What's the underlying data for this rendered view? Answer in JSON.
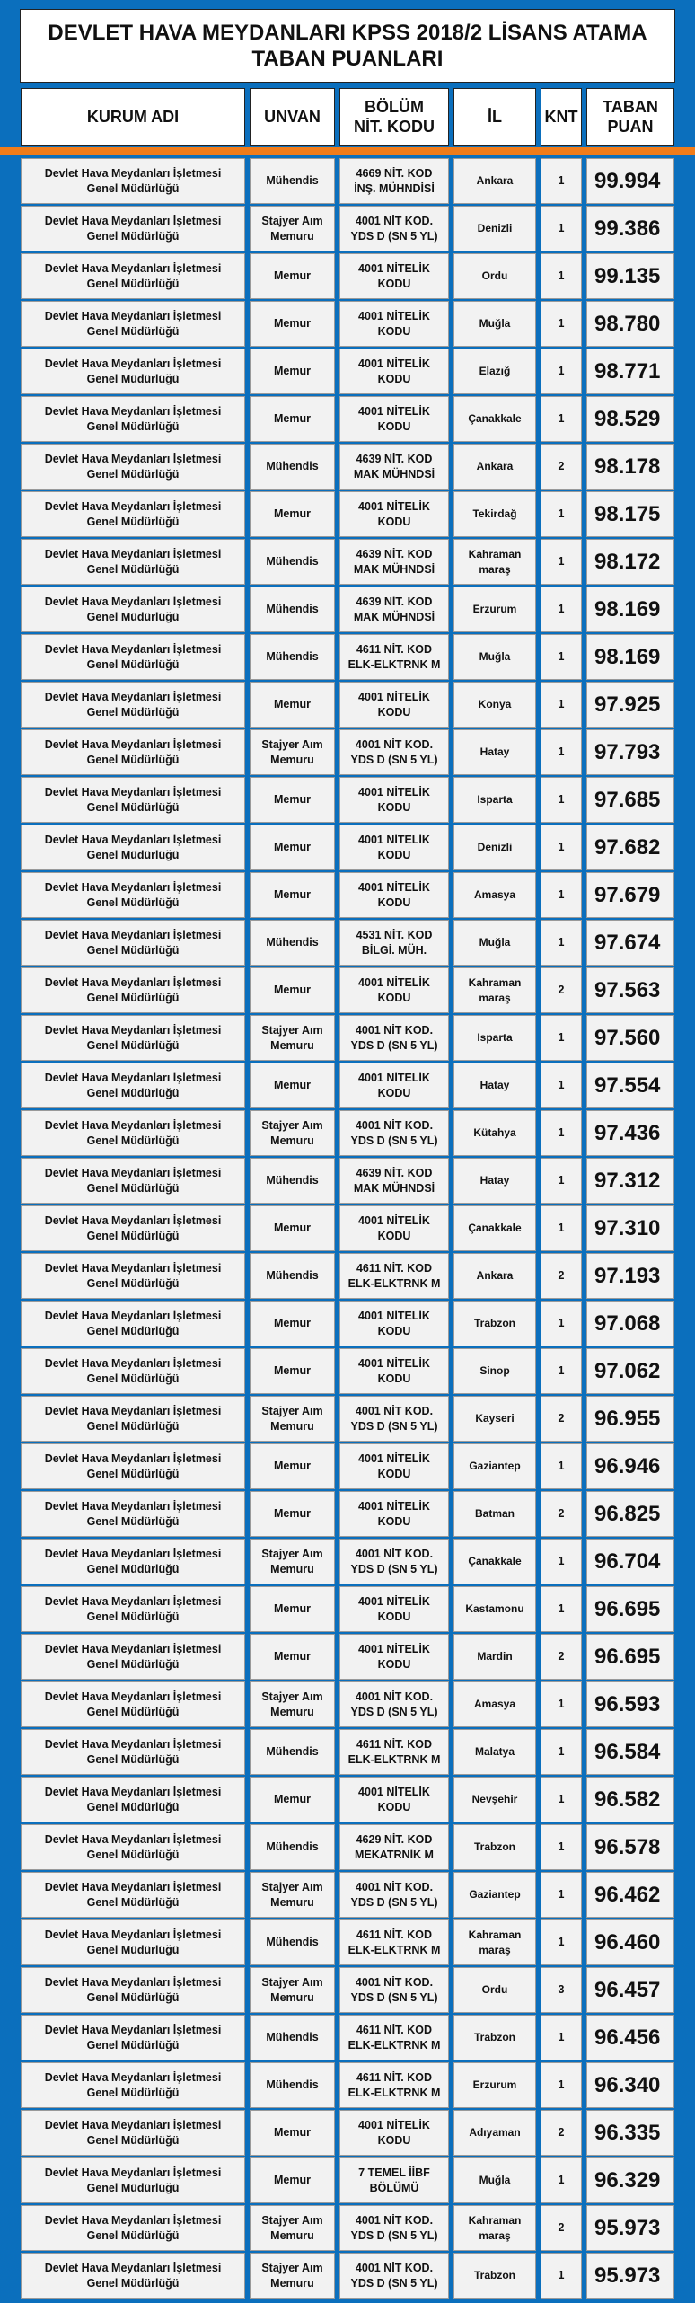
{
  "title": "DEVLET HAVA MEYDANLARI KPSS 2018/2 LİSANS ATAMA\nTABAN PUANLARI",
  "table": {
    "header": [
      "KURUM ADI",
      "UNVAN",
      "BÖLÜM\nNİT. KODU",
      "İL",
      "KNT",
      "TABAN\nPUAN"
    ],
    "rows": [
      [
        "Devlet Hava Meydanları İşletmesi\nGenel Müdürlüğü",
        "Mühendis",
        "4669 NİT. KOD\nİNŞ. MÜHNDİSİ",
        "Ankara",
        "1",
        "99.994"
      ],
      [
        "Devlet Hava Meydanları İşletmesi\nGenel Müdürlüğü",
        "Stajyer Aım\nMemuru",
        "4001 NİT KOD.\nYDS D (SN 5 YL)",
        "Denizli",
        "1",
        "99.386"
      ],
      [
        "Devlet Hava Meydanları İşletmesi\nGenel Müdürlüğü",
        "Memur",
        "4001 NİTELİK\nKODU",
        "Ordu",
        "1",
        "99.135"
      ],
      [
        "Devlet Hava Meydanları İşletmesi\nGenel Müdürlüğü",
        "Memur",
        "4001 NİTELİK\nKODU",
        "Muğla",
        "1",
        "98.780"
      ],
      [
        "Devlet Hava Meydanları İşletmesi\nGenel Müdürlüğü",
        "Memur",
        "4001 NİTELİK\nKODU",
        "Elazığ",
        "1",
        "98.771"
      ],
      [
        "Devlet Hava Meydanları İşletmesi\nGenel Müdürlüğü",
        "Memur",
        "4001 NİTELİK\nKODU",
        "Çanakkale",
        "1",
        "98.529"
      ],
      [
        "Devlet Hava Meydanları İşletmesi\nGenel Müdürlüğü",
        "Mühendis",
        "4639 NİT. KOD\nMAK MÜHNDSİ",
        "Ankara",
        "2",
        "98.178"
      ],
      [
        "Devlet Hava Meydanları İşletmesi\nGenel Müdürlüğü",
        "Memur",
        "4001 NİTELİK\nKODU",
        "Tekirdağ",
        "1",
        "98.175"
      ],
      [
        "Devlet Hava Meydanları İşletmesi\nGenel Müdürlüğü",
        "Mühendis",
        "4639 NİT. KOD\nMAK MÜHNDSİ",
        "Kahraman\nmaraş",
        "1",
        "98.172"
      ],
      [
        "Devlet Hava Meydanları İşletmesi\nGenel Müdürlüğü",
        "Mühendis",
        "4639 NİT. KOD\nMAK MÜHNDSİ",
        "Erzurum",
        "1",
        "98.169"
      ],
      [
        "Devlet Hava Meydanları İşletmesi\nGenel Müdürlüğü",
        "Mühendis",
        "4611 NİT. KOD\nELK-ELKTRNK M",
        "Muğla",
        "1",
        "98.169"
      ],
      [
        "Devlet Hava Meydanları İşletmesi\nGenel Müdürlüğü",
        "Memur",
        "4001 NİTELİK\nKODU",
        "Konya",
        "1",
        "97.925"
      ],
      [
        "Devlet Hava Meydanları İşletmesi\nGenel Müdürlüğü",
        "Stajyer Aım\nMemuru",
        "4001 NİT KOD.\nYDS D (SN 5 YL)",
        "Hatay",
        "1",
        "97.793"
      ],
      [
        "Devlet Hava Meydanları İşletmesi\nGenel Müdürlüğü",
        "Memur",
        "4001 NİTELİK\nKODU",
        "Isparta",
        "1",
        "97.685"
      ],
      [
        "Devlet Hava Meydanları İşletmesi\nGenel Müdürlüğü",
        "Memur",
        "4001 NİTELİK\nKODU",
        "Denizli",
        "1",
        "97.682"
      ],
      [
        "Devlet Hava Meydanları İşletmesi\nGenel Müdürlüğü",
        "Memur",
        "4001 NİTELİK\nKODU",
        "Amasya",
        "1",
        "97.679"
      ],
      [
        "Devlet Hava Meydanları İşletmesi\nGenel Müdürlüğü",
        "Mühendis",
        "4531 NİT. KOD\nBİLGİ. MÜH.",
        "Muğla",
        "1",
        "97.674"
      ],
      [
        "Devlet Hava Meydanları İşletmesi\nGenel Müdürlüğü",
        "Memur",
        "4001 NİTELİK\nKODU",
        "Kahraman\nmaraş",
        "2",
        "97.563"
      ],
      [
        "Devlet Hava Meydanları İşletmesi\nGenel Müdürlüğü",
        "Stajyer Aım\nMemuru",
        "4001 NİT KOD.\nYDS D (SN 5 YL)",
        "Isparta",
        "1",
        "97.560"
      ],
      [
        "Devlet Hava Meydanları İşletmesi\nGenel Müdürlüğü",
        "Memur",
        "4001 NİTELİK\nKODU",
        "Hatay",
        "1",
        "97.554"
      ],
      [
        "Devlet Hava Meydanları İşletmesi\nGenel Müdürlüğü",
        "Stajyer Aım\nMemuru",
        "4001 NİT KOD.\nYDS D (SN 5 YL)",
        "Kütahya",
        "1",
        "97.436"
      ],
      [
        "Devlet Hava Meydanları İşletmesi\nGenel Müdürlüğü",
        "Mühendis",
        "4639 NİT. KOD\nMAK MÜHNDSİ",
        "Hatay",
        "1",
        "97.312"
      ],
      [
        "Devlet Hava Meydanları İşletmesi\nGenel Müdürlüğü",
        "Memur",
        "4001 NİTELİK\nKODU",
        "Çanakkale",
        "1",
        "97.310"
      ],
      [
        "Devlet Hava Meydanları İşletmesi\nGenel Müdürlüğü",
        "Mühendis",
        "4611 NİT. KOD\nELK-ELKTRNK M",
        "Ankara",
        "2",
        "97.193"
      ],
      [
        "Devlet Hava Meydanları İşletmesi\nGenel Müdürlüğü",
        "Memur",
        "4001 NİTELİK\nKODU",
        "Trabzon",
        "1",
        "97.068"
      ],
      [
        "Devlet Hava Meydanları İşletmesi\nGenel Müdürlüğü",
        "Memur",
        "4001 NİTELİK\nKODU",
        "Sinop",
        "1",
        "97.062"
      ],
      [
        "Devlet Hava Meydanları İşletmesi\nGenel Müdürlüğü",
        "Stajyer Aım\nMemuru",
        "4001 NİT KOD.\nYDS D (SN 5 YL)",
        "Kayseri",
        "2",
        "96.955"
      ],
      [
        "Devlet Hava Meydanları İşletmesi\nGenel Müdürlüğü",
        "Memur",
        "4001 NİTELİK\nKODU",
        "Gaziantep",
        "1",
        "96.946"
      ],
      [
        "Devlet Hava Meydanları İşletmesi\nGenel Müdürlüğü",
        "Memur",
        "4001 NİTELİK\nKODU",
        "Batman",
        "2",
        "96.825"
      ],
      [
        "Devlet Hava Meydanları İşletmesi\nGenel Müdürlüğü",
        "Stajyer Aım\nMemuru",
        "4001 NİT KOD.\nYDS D (SN 5 YL)",
        "Çanakkale",
        "1",
        "96.704"
      ],
      [
        "Devlet Hava Meydanları İşletmesi\nGenel Müdürlüğü",
        "Memur",
        "4001 NİTELİK\nKODU",
        "Kastamonu",
        "1",
        "96.695"
      ],
      [
        "Devlet Hava Meydanları İşletmesi\nGenel Müdürlüğü",
        "Memur",
        "4001 NİTELİK\nKODU",
        "Mardin",
        "2",
        "96.695"
      ],
      [
        "Devlet Hava Meydanları İşletmesi\nGenel Müdürlüğü",
        "Stajyer Aım\nMemuru",
        "4001 NİT KOD.\nYDS D (SN 5 YL)",
        "Amasya",
        "1",
        "96.593"
      ],
      [
        "Devlet Hava Meydanları İşletmesi\nGenel Müdürlüğü",
        "Mühendis",
        "4611 NİT. KOD\nELK-ELKTRNK M",
        "Malatya",
        "1",
        "96.584"
      ],
      [
        "Devlet Hava Meydanları İşletmesi\nGenel Müdürlüğü",
        "Memur",
        "4001 NİTELİK\nKODU",
        "Nevşehir",
        "1",
        "96.582"
      ],
      [
        "Devlet Hava Meydanları İşletmesi\nGenel Müdürlüğü",
        "Mühendis",
        "4629 NİT. KOD\nMEKATRNİK M",
        "Trabzon",
        "1",
        "96.578"
      ],
      [
        "Devlet Hava Meydanları İşletmesi\nGenel Müdürlüğü",
        "Stajyer Aım\nMemuru",
        "4001 NİT KOD.\nYDS D (SN 5 YL)",
        "Gaziantep",
        "1",
        "96.462"
      ],
      [
        "Devlet Hava Meydanları İşletmesi\nGenel Müdürlüğü",
        "Mühendis",
        "4611 NİT. KOD\nELK-ELKTRNK M",
        "Kahraman\nmaraş",
        "1",
        "96.460"
      ],
      [
        "Devlet Hava Meydanları İşletmesi\nGenel Müdürlüğü",
        "Stajyer Aım\nMemuru",
        "4001 NİT KOD.\nYDS D (SN 5 YL)",
        "Ordu",
        "3",
        "96.457"
      ],
      [
        "Devlet Hava Meydanları İşletmesi\nGenel Müdürlüğü",
        "Mühendis",
        "4611 NİT. KOD\nELK-ELKTRNK M",
        "Trabzon",
        "1",
        "96.456"
      ],
      [
        "Devlet Hava Meydanları İşletmesi\nGenel Müdürlüğü",
        "Mühendis",
        "4611 NİT. KOD\nELK-ELKTRNK M",
        "Erzurum",
        "1",
        "96.340"
      ],
      [
        "Devlet Hava Meydanları İşletmesi\nGenel Müdürlüğü",
        "Memur",
        "4001 NİTELİK\nKODU",
        "Adıyaman",
        "2",
        "96.335"
      ],
      [
        "Devlet Hava Meydanları İşletmesi\nGenel Müdürlüğü",
        "Memur",
        "7 TEMEL İİBF\nBÖLÜMÜ",
        "Muğla",
        "1",
        "96.329"
      ],
      [
        "Devlet Hava Meydanları İşletmesi\nGenel Müdürlüğü",
        "Stajyer Aım\nMemuru",
        "4001 NİT KOD.\nYDS D (SN 5 YL)",
        "Kahraman\nmaraş",
        "2",
        "95.973"
      ],
      [
        "Devlet Hava Meydanları İşletmesi\nGenel Müdürlüğü",
        "Stajyer Aım\nMemuru",
        "4001 NİT KOD.\nYDS D (SN 5 YL)",
        "Trabzon",
        "1",
        "95.973"
      ]
    ]
  }
}
